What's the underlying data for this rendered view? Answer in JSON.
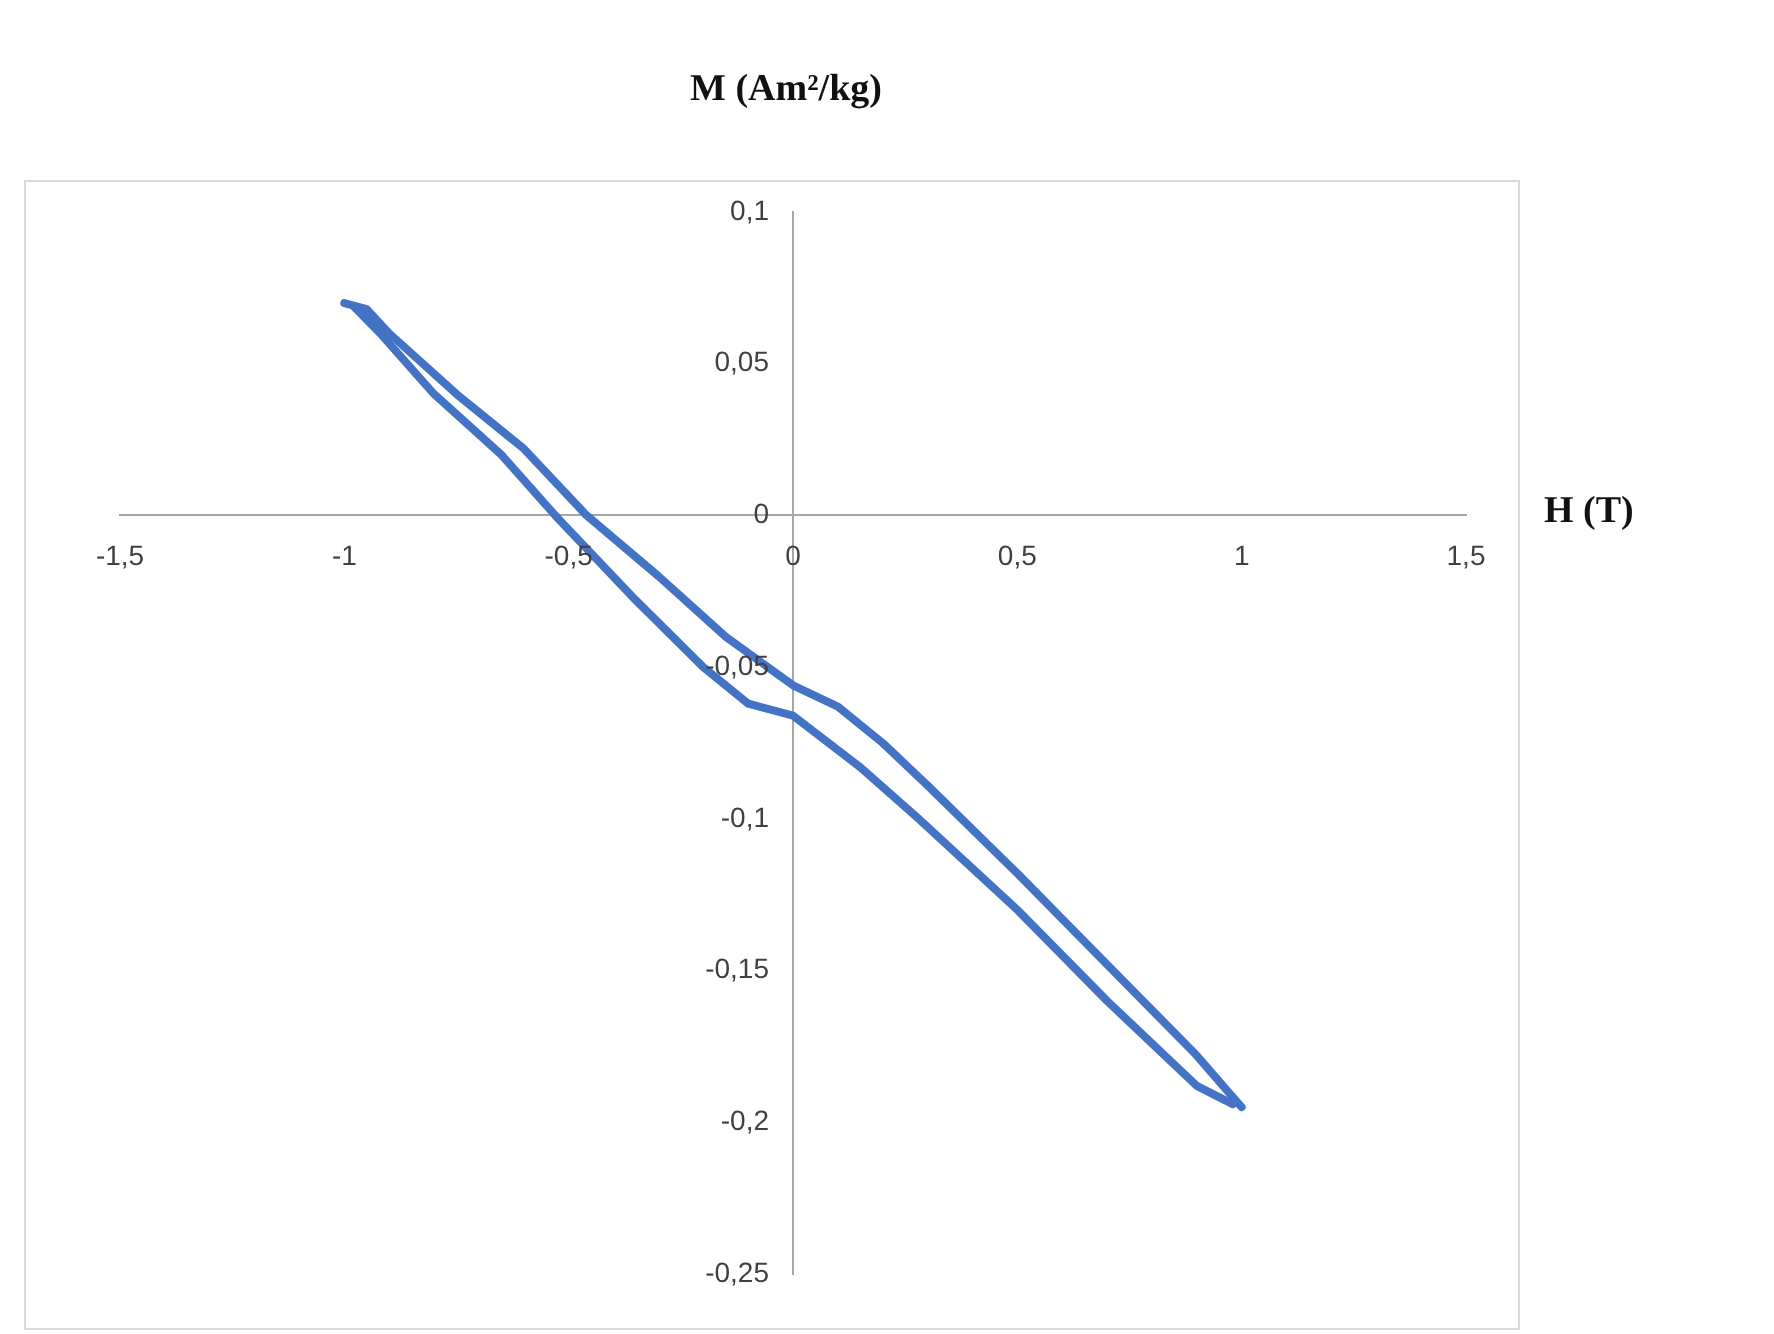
{
  "chart_data": {
    "type": "line",
    "xlabel": "H (T)",
    "ylabel": "M (Am²/kg)",
    "xlim": [
      -1.5,
      1.5
    ],
    "ylim": [
      -0.25,
      0.1
    ],
    "xticks": [
      {
        "value": -1.5,
        "label": "-1,5"
      },
      {
        "value": -1,
        "label": "-1"
      },
      {
        "value": -0.5,
        "label": "-0,5"
      },
      0,
      {
        "value": 0.5,
        "label": "0,5"
      },
      1,
      {
        "value": 1.5,
        "label": "1,5"
      }
    ],
    "yticks": [
      {
        "value": -0.25,
        "label": "-0,25"
      },
      {
        "value": -0.2,
        "label": "-0,2"
      },
      {
        "value": -0.15,
        "label": "-0,15"
      },
      {
        "value": -0.1,
        "label": "-0,1"
      },
      {
        "value": -0.05,
        "label": "-0,05"
      },
      0,
      {
        "value": 0.05,
        "label": "0,05"
      },
      {
        "value": 0.1,
        "label": "0,1"
      }
    ],
    "marker": "none",
    "grid": false,
    "series": [
      {
        "color": "#4472c4",
        "x": [
          -1,
          -0.95,
          -0.9,
          -0.75,
          -0.6,
          -0.46,
          -0.3,
          -0.15,
          0,
          0.1,
          0.2,
          0.3,
          0.5,
          0.7,
          0.9,
          0.97,
          1
        ],
        "values": [
          0.07,
          0.068,
          0.06,
          0.04,
          0.022,
          0,
          -0.02,
          -0.04,
          -0.056,
          -0.063,
          -0.075,
          -0.089,
          -0.118,
          -0.148,
          -0.178,
          -0.19,
          -0.195
        ]
      },
      {
        "color": "#4472c4",
        "x": [
          -0.98,
          -0.92,
          -0.8,
          -0.65,
          -0.53,
          -0.35,
          -0.2,
          -0.1,
          0,
          0.15,
          0.28,
          0.5,
          0.7,
          0.9,
          0.98
        ],
        "values": [
          0.069,
          0.06,
          0.04,
          0.02,
          0,
          -0.028,
          -0.05,
          -0.062,
          -0.066,
          -0.083,
          -0.1,
          -0.13,
          -0.16,
          -0.188,
          -0.194
        ]
      }
    ]
  }
}
